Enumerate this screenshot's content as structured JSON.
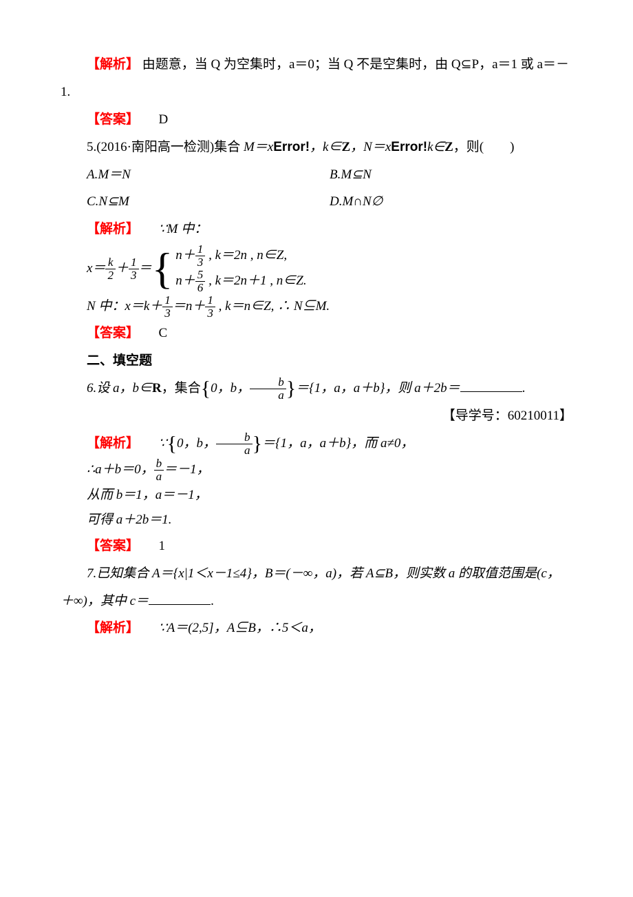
{
  "labels": {
    "analysis": "【解析】",
    "answer": "【答案】"
  },
  "colors": {
    "text": "#000000",
    "accent": "#ff0000",
    "background": "#ffffff"
  },
  "typography": {
    "body_fontsize_pt": 14,
    "line_height": 2.1,
    "font_family": "Times New Roman / SimSun"
  },
  "q4": {
    "analysis_text": "由题意，当 Q 为空集时，a＝0；当 Q 不是空集时，由 Q⊆P，a＝1 或 a＝－1.",
    "answer_value": "D"
  },
  "q5": {
    "stem_prefix": "5.(2016·南阳高一检测)集合 ",
    "M_part1": "M＝x",
    "error_text": "Error!",
    "comma_k": "，k∈",
    "Z": "Z",
    "comma_N": "，N＝x",
    "comma_k2": "k∈",
    "end": "，则(　　)",
    "options": {
      "A": "A.M＝N",
      "B": "B.M⊆N",
      "C": "C.N⊆M",
      "D": "D.M∩N∅"
    },
    "analysis_lead": "∵M 中：",
    "eq_left": "x＝",
    "frac_k_over_2": {
      "num": "k",
      "den": "2"
    },
    "plus": "＋",
    "frac_1_over_3": {
      "num": "1",
      "den": "3"
    },
    "eq": "＝",
    "case1_prefix": "n＋",
    "case1_frac": {
      "num": "1",
      "den": "3"
    },
    "case1_tail": " , k＝2n , n∈Z,",
    "case2_prefix": "n＋",
    "case2_frac": {
      "num": "5",
      "den": "6"
    },
    "case2_tail": " , k＝2n＋1 , n∈Z.",
    "N_line_p1": "N 中：x＝k＋",
    "N_line_frac1": {
      "num": "1",
      "den": "3"
    },
    "N_line_mid": "＝n＋",
    "N_line_frac2": {
      "num": "1",
      "den": "3"
    },
    "N_line_tail": " , k＝n∈Z, ∴ N⊆M.",
    "answer_value": "C"
  },
  "section2_title": "二、填空题",
  "q6": {
    "stem_p1": "6.设 a，b∈",
    "R": "R",
    "stem_p2": "，集合",
    "set_elems": "0，b，",
    "frac_b_over_a": {
      "num": "b",
      "den": "a"
    },
    "stem_p3": "＝{1，a，a＋b}，则 a＋2b＝",
    "stem_end": ".",
    "guide": "【导学号：60210011】",
    "analysis_p1": "∵",
    "analysis_mid": "＝{1，a，a＋b}，而 a≠0，",
    "line2_p1": "∴a＋b＝0，",
    "line2_tail": "＝－1，",
    "line3": "从而 b＝1，a＝－1，",
    "line4": "可得 a＋2b＝1.",
    "answer_value": "1"
  },
  "q7": {
    "stem": "7.已知集合 A＝{x|1＜x－1≤4}，B＝(－∞，a)，若 A⊆B，则实数 a 的取值范围是(c，＋∞)，其中 c＝",
    "stem_end": ".",
    "analysis": "∵A＝(2,5]，A⊆B，∴5＜a，"
  }
}
